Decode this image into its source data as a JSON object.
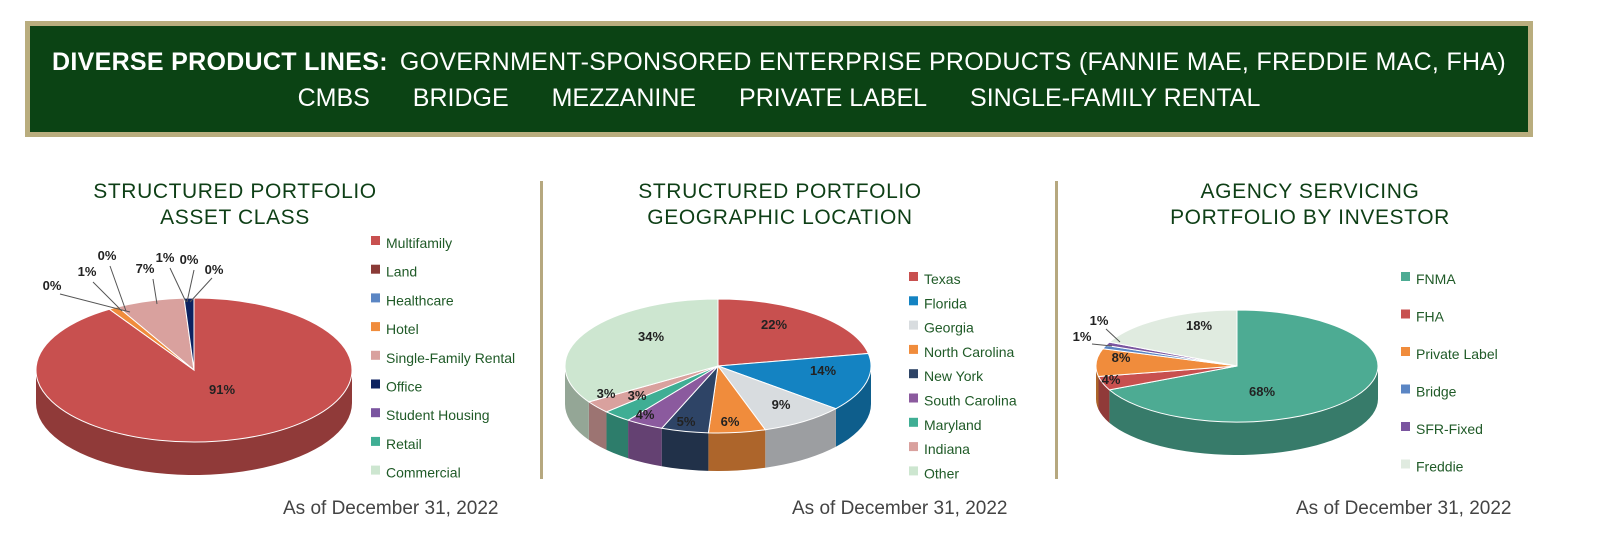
{
  "banner": {
    "heading": "DIVERSE PRODUCT LINES:",
    "line1_text": "GOVERNMENT-SPONSORED ENTERPRISE PRODUCTS (FANNIE MAE, FREDDIE MAC, FHA)",
    "line2_items": [
      "CMBS",
      "BRIDGE",
      "MEZZANINE",
      "PRIVATE LABEL",
      "SINGLE-FAMILY RENTAL"
    ]
  },
  "chart_data": [
    {
      "type": "pie",
      "title": "STRUCTURED PORTFOLIO ASSET CLASS",
      "title_lines": [
        "STRUCTURED PORTFOLIO",
        "ASSET CLASS"
      ],
      "as_of": "As of December 31, 2022",
      "legend_placement": "right",
      "categories": [
        "Multifamily",
        "Land",
        "Healthcare",
        "Hotel",
        "Single-Family Rental",
        "Office",
        "Student Housing",
        "Retail",
        "Commercial"
      ],
      "values": [
        91,
        0,
        0,
        1,
        7,
        1,
        0,
        0,
        0
      ],
      "labels": [
        "91%",
        "0%",
        "0%",
        "1%",
        "7%",
        "1%",
        "0%",
        "0%",
        "0%"
      ],
      "colors": [
        "#c8504f",
        "#8a3a36",
        "#5b86c4",
        "#f08c3c",
        "#d9a19e",
        "#0c2260",
        "#7a55a0",
        "#3fae94",
        "#cde6d0"
      ]
    },
    {
      "type": "pie",
      "title": "STRUCTURED PORTFOLIO GEOGRAPHIC LOCATION",
      "title_lines": [
        "STRUCTURED PORTFOLIO",
        "GEOGRAPHIC LOCATION"
      ],
      "as_of": "As of December 31, 2022",
      "legend_placement": "right",
      "categories": [
        "Texas",
        "Florida",
        "Georgia",
        "North Carolina",
        "New York",
        "South Carolina",
        "Maryland",
        "Indiana",
        "Other"
      ],
      "values": [
        22,
        14,
        9,
        6,
        5,
        4,
        3,
        3,
        34
      ],
      "labels": [
        "22%",
        "14%",
        "9%",
        "6%",
        "5%",
        "4%",
        "3%",
        "3%",
        "34%"
      ],
      "colors": [
        "#c8504f",
        "#1483c2",
        "#d8dcdf",
        "#f08c3c",
        "#2e4466",
        "#8b5a9e",
        "#3fae94",
        "#d9a19e",
        "#cde6d0"
      ]
    },
    {
      "type": "pie",
      "title": "AGENCY SERVICING PORTFOLIO BY INVESTOR",
      "title_lines": [
        "AGENCY SERVICING",
        "PORTFOLIO BY INVESTOR"
      ],
      "as_of": "As of December 31, 2022",
      "legend_placement": "right",
      "categories": [
        "FNMA",
        "FHA",
        "Private Label",
        "Bridge",
        "SFR-Fixed",
        "Freddie"
      ],
      "values": [
        68,
        4,
        8,
        1,
        1,
        18
      ],
      "labels": [
        "68%",
        "4%",
        "8%",
        "1%",
        "1%",
        "18%"
      ],
      "colors": [
        "#4dab93",
        "#c8504f",
        "#f08c3c",
        "#5b86c4",
        "#7a55a0",
        "#e0ebe0"
      ]
    }
  ]
}
